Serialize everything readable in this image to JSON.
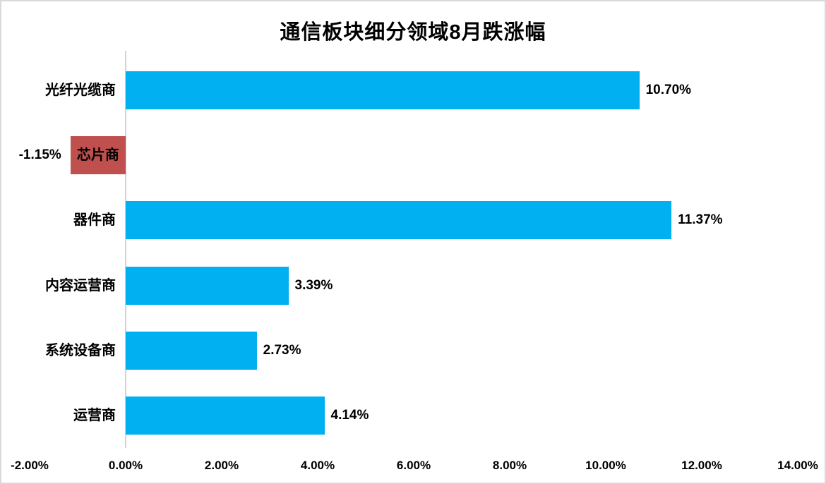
{
  "chart_data": {
    "type": "bar",
    "orientation": "horizontal",
    "title": "通信板块细分领域8月跌涨幅",
    "categories": [
      "光纤光缆商",
      "芯片商",
      "器件商",
      "内容运营商",
      "系统设备商",
      "运营商"
    ],
    "values": [
      10.7,
      -1.15,
      11.37,
      3.39,
      2.73,
      4.14
    ],
    "data_labels": [
      "10.70%",
      "-1.15%",
      "11.37%",
      "3.39%",
      "2.73%",
      "4.14%"
    ],
    "x_ticks": [
      {
        "label": "-2.00%",
        "value": -2
      },
      {
        "label": "0.00%",
        "value": 0
      },
      {
        "label": "2.00%",
        "value": 2
      },
      {
        "label": "4.00%",
        "value": 4
      },
      {
        "label": "6.00%",
        "value": 6
      },
      {
        "label": "8.00%",
        "value": 8
      },
      {
        "label": "10.00%",
        "value": 10
      },
      {
        "label": "12.00%",
        "value": 12
      },
      {
        "label": "14.00%",
        "value": 14
      }
    ],
    "xlim": [
      -2,
      14
    ],
    "grid": false,
    "legend": false,
    "colors": {
      "positive_bar": "#00B0F0",
      "negative_bar": "#C0504D",
      "axis_line": "#D3D3D3",
      "chart_border": "#D9D9D9",
      "text": "#000000"
    }
  }
}
